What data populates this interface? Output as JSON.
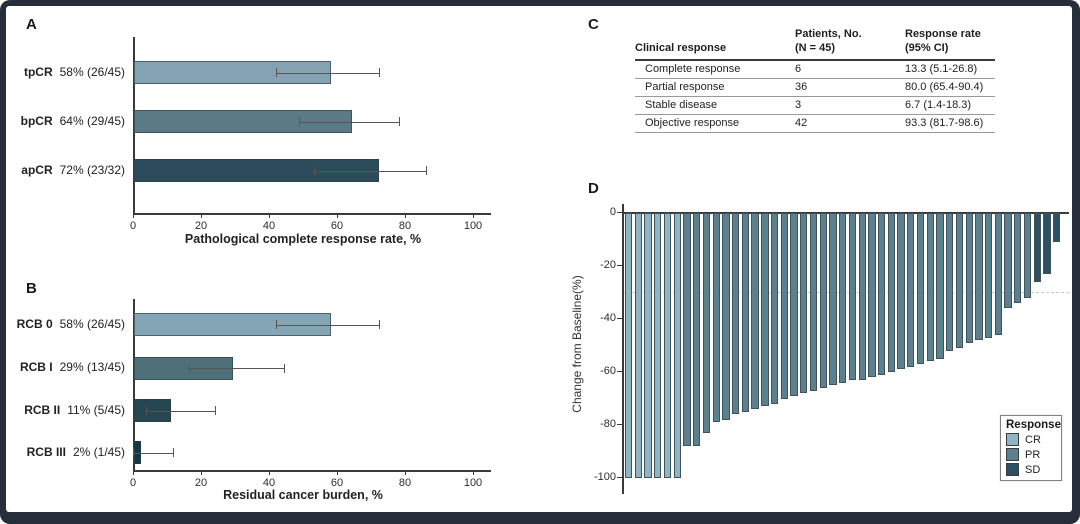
{
  "figure_labels": {
    "a": "A",
    "b": "B",
    "c": "C",
    "d": "D"
  },
  "chart_data": [
    {
      "id": "A",
      "type": "bar",
      "orientation": "horizontal",
      "xlabel": "Pathological complete response rate, %",
      "xlim": [
        0,
        100
      ],
      "xticks": [
        0,
        20,
        40,
        60,
        80,
        100
      ],
      "categories": [
        "tpCR",
        "bpCR",
        "apCR"
      ],
      "value_labels": [
        "58% (26/45)",
        "64% (29/45)",
        "72% (23/32)"
      ],
      "values": [
        58,
        64,
        72
      ],
      "ci_low": [
        42.2,
        48.8,
        53.3
      ],
      "ci_high": [
        72.3,
        78.1,
        86.3
      ],
      "colors": [
        "#84a2b1",
        "#5b7a85",
        "#2c4c5b"
      ],
      "grid": false
    },
    {
      "id": "B",
      "type": "bar",
      "orientation": "horizontal",
      "xlabel": "Residual cancer burden, %",
      "xlim": [
        0,
        100
      ],
      "xticks": [
        0,
        20,
        40,
        60,
        80,
        100
      ],
      "categories": [
        "RCB 0",
        "RCB I",
        "RCB II",
        "RCB III"
      ],
      "value_labels": [
        "58% (26/45)",
        "29% (13/45)",
        "11% (5/45)",
        "2% (1/45)"
      ],
      "values": [
        58,
        29,
        11,
        2
      ],
      "ci_low": [
        42.2,
        16.4,
        3.7,
        0.1
      ],
      "ci_high": [
        72.3,
        44.3,
        24.1,
        11.8
      ],
      "colors": [
        "#84a6b4",
        "#507079",
        "#264751",
        "#133843"
      ],
      "grid": false
    },
    {
      "id": "C",
      "type": "table",
      "columns": [
        "Clinical response",
        "Patients, No.\n(N = 45)",
        "Response rate\n(95% CI)"
      ],
      "rows": [
        [
          "Complete response",
          "6",
          "13.3 (5.1-26.8)"
        ],
        [
          "Partial response",
          "36",
          "80.0 (65.4-90.4)"
        ],
        [
          "Stable disease",
          "3",
          "6.7 (1.4-18.3)"
        ],
        [
          "Objective response",
          "42",
          "93.3 (81.7-98.6)"
        ]
      ]
    },
    {
      "id": "D",
      "type": "bar",
      "subtype": "waterfall",
      "ylabel": "Change from Baseline(%)",
      "ylim": [
        -100,
        0
      ],
      "yticks": [
        0,
        -20,
        -40,
        -60,
        -80,
        -100
      ],
      "reference_line": -30,
      "legend": {
        "title": "Response",
        "position": "lower right",
        "entries": [
          {
            "label": "CR",
            "color": "#8fb5c3"
          },
          {
            "label": "PR",
            "color": "#5d808e"
          },
          {
            "label": "SD",
            "color": "#2b5163"
          }
        ]
      },
      "bars": [
        {
          "response": "CR",
          "value": -100
        },
        {
          "response": "CR",
          "value": -100
        },
        {
          "response": "CR",
          "value": -100
        },
        {
          "response": "CR",
          "value": -100
        },
        {
          "response": "CR",
          "value": -100
        },
        {
          "response": "CR",
          "value": -100
        },
        {
          "response": "PR",
          "value": -88
        },
        {
          "response": "PR",
          "value": -88
        },
        {
          "response": "PR",
          "value": -83
        },
        {
          "response": "PR",
          "value": -79
        },
        {
          "response": "PR",
          "value": -78
        },
        {
          "response": "PR",
          "value": -76
        },
        {
          "response": "PR",
          "value": -75
        },
        {
          "response": "PR",
          "value": -74
        },
        {
          "response": "PR",
          "value": -73
        },
        {
          "response": "PR",
          "value": -72
        },
        {
          "response": "PR",
          "value": -70
        },
        {
          "response": "PR",
          "value": -69
        },
        {
          "response": "PR",
          "value": -68
        },
        {
          "response": "PR",
          "value": -67
        },
        {
          "response": "PR",
          "value": -66
        },
        {
          "response": "PR",
          "value": -65
        },
        {
          "response": "PR",
          "value": -64
        },
        {
          "response": "PR",
          "value": -63
        },
        {
          "response": "PR",
          "value": -63
        },
        {
          "response": "PR",
          "value": -62
        },
        {
          "response": "PR",
          "value": -61
        },
        {
          "response": "PR",
          "value": -60
        },
        {
          "response": "PR",
          "value": -59
        },
        {
          "response": "PR",
          "value": -58
        },
        {
          "response": "PR",
          "value": -57
        },
        {
          "response": "PR",
          "value": -56
        },
        {
          "response": "PR",
          "value": -55
        },
        {
          "response": "PR",
          "value": -52
        },
        {
          "response": "PR",
          "value": -51
        },
        {
          "response": "PR",
          "value": -49
        },
        {
          "response": "PR",
          "value": -48
        },
        {
          "response": "PR",
          "value": -47
        },
        {
          "response": "PR",
          "value": -46
        },
        {
          "response": "PR",
          "value": -36
        },
        {
          "response": "PR",
          "value": -34
        },
        {
          "response": "PR",
          "value": -32
        },
        {
          "response": "SD",
          "value": -26
        },
        {
          "response": "SD",
          "value": -23
        },
        {
          "response": "SD",
          "value": -11
        }
      ]
    }
  ]
}
